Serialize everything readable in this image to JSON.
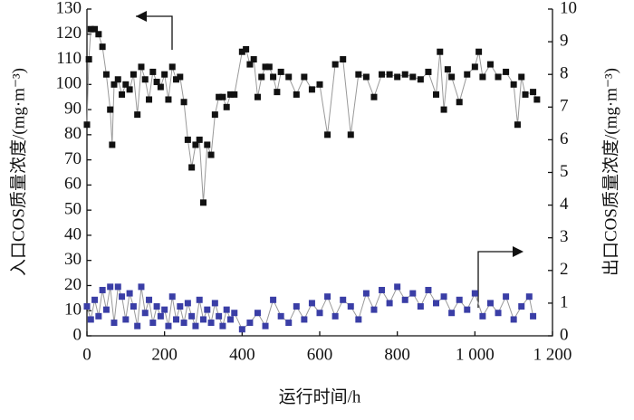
{
  "chart_data": {
    "type": "line",
    "x_label": "运行时间/h",
    "y_label": "入口COS质量浓度/(mg·m⁻³)",
    "y2_label": "出口COS质量浓度/(mg·m⁻³)",
    "xlim": [
      0,
      1200
    ],
    "xticks": [
      0,
      200,
      400,
      600,
      800,
      {
        "value": 1000,
        "label": "1 000"
      },
      {
        "value": 1200,
        "label": "1 200"
      }
    ],
    "ylim": [
      0,
      130
    ],
    "yticks": [
      0,
      10,
      20,
      30,
      40,
      50,
      60,
      70,
      80,
      90,
      100,
      110,
      120,
      130
    ],
    "y2lim": [
      0,
      10
    ],
    "y2ticks": [
      0,
      1,
      2,
      3,
      4,
      5,
      6,
      7,
      8,
      9,
      10
    ],
    "series": [
      {
        "color": "#111111",
        "x": [
          0,
          5,
          10,
          20,
          30,
          40,
          50,
          60,
          65,
          70,
          80,
          90,
          100,
          110,
          120,
          130,
          140,
          150,
          160,
          170,
          180,
          190,
          200,
          210,
          220,
          230,
          240,
          250,
          260,
          270,
          280,
          290,
          300,
          310,
          320,
          330,
          340,
          350,
          360,
          370,
          380,
          400,
          410,
          420,
          430,
          440,
          450,
          460,
          470,
          480,
          490,
          500,
          520,
          540,
          560,
          580,
          600,
          620,
          640,
          660,
          680,
          700,
          720,
          740,
          760,
          780,
          800,
          820,
          840,
          860,
          880,
          900,
          910,
          920,
          930,
          940,
          960,
          980,
          1000,
          1010,
          1020,
          1040,
          1060,
          1080,
          1100,
          1110,
          1120,
          1130,
          1150,
          1160
        ],
        "values": [
          84,
          110,
          122,
          122,
          120,
          115,
          104,
          90,
          76,
          100,
          102,
          96,
          100,
          98,
          104,
          88,
          107,
          102,
          94,
          105,
          101,
          99,
          104,
          94,
          107,
          102,
          103,
          93,
          78,
          67,
          76,
          78,
          53,
          76,
          72,
          88,
          95,
          95,
          91,
          96,
          96,
          113,
          114,
          108,
          110,
          95,
          103,
          107,
          107,
          103,
          97,
          105,
          103,
          96,
          103,
          98,
          100,
          80,
          108,
          110,
          80,
          104,
          103,
          95,
          104,
          104,
          103,
          104,
          103,
          102,
          105,
          96,
          113,
          90,
          106,
          103,
          93,
          104,
          107,
          113,
          103,
          108,
          103,
          105,
          100,
          84,
          103,
          96,
          97,
          94
        ]
      },
      {
        "color": "#3a3ea6",
        "axis": "y2",
        "x": [
          0,
          10,
          20,
          30,
          40,
          50,
          60,
          70,
          80,
          90,
          100,
          110,
          120,
          130,
          140,
          150,
          160,
          170,
          180,
          190,
          200,
          210,
          220,
          230,
          240,
          250,
          260,
          270,
          280,
          290,
          300,
          310,
          320,
          330,
          340,
          350,
          360,
          370,
          380,
          400,
          420,
          440,
          460,
          480,
          500,
          520,
          540,
          560,
          580,
          600,
          620,
          640,
          660,
          680,
          700,
          720,
          740,
          760,
          780,
          800,
          820,
          840,
          860,
          880,
          900,
          920,
          940,
          960,
          980,
          1000,
          1020,
          1040,
          1060,
          1080,
          1100,
          1120,
          1140,
          1150
        ],
        "values": [
          0.9,
          0.5,
          1.1,
          0.6,
          1.4,
          0.8,
          1.5,
          0.4,
          1.5,
          1.2,
          0.5,
          1.3,
          0.9,
          0.3,
          1.5,
          0.7,
          1.1,
          0.4,
          0.9,
          0.6,
          0.8,
          0.3,
          1.2,
          0.5,
          0.9,
          0.4,
          1.0,
          0.6,
          0.3,
          1.1,
          0.5,
          0.8,
          0.4,
          1.0,
          0.6,
          0.3,
          0.8,
          0.5,
          0.7,
          0.2,
          0.4,
          0.7,
          0.3,
          1.1,
          0.6,
          0.4,
          0.9,
          0.5,
          1.0,
          0.7,
          1.2,
          0.6,
          1.1,
          0.9,
          0.5,
          1.3,
          0.8,
          1.4,
          1.0,
          1.5,
          1.1,
          1.3,
          0.9,
          1.4,
          1.0,
          1.2,
          0.7,
          1.1,
          0.8,
          1.3,
          0.6,
          1.0,
          0.7,
          1.2,
          0.5,
          0.9,
          1.2,
          0.6
        ]
      }
    ]
  }
}
